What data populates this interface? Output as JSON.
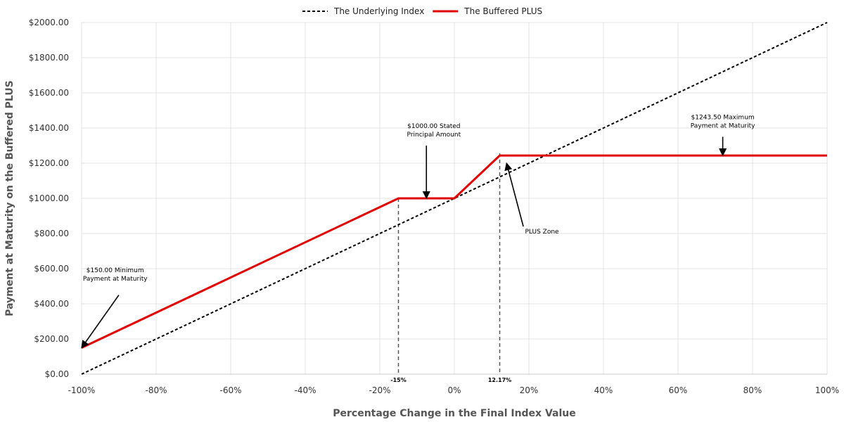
{
  "chart_data": {
    "type": "line",
    "xlabel": "Percentage Change in the Final Index Value",
    "ylabel": "Payment at Maturity on the Buffered PLUS",
    "xlim": [
      -100,
      100
    ],
    "ylim": [
      0,
      2000
    ],
    "x_ticks": [
      -100,
      -80,
      -60,
      -40,
      -20,
      0,
      20,
      40,
      60,
      80,
      100
    ],
    "x_tick_labels": [
      "-100%",
      "-80%",
      "-60%",
      "-40%",
      "-20%",
      "0%",
      "20%",
      "40%",
      "60%",
      "80%",
      "100%"
    ],
    "y_ticks": [
      0,
      200,
      400,
      600,
      800,
      1000,
      1200,
      1400,
      1600,
      1800,
      2000
    ],
    "y_tick_labels": [
      "$0.00",
      "$200.00",
      "$400.00",
      "$600.00",
      "$800.00",
      "$1000.00",
      "$1200.00",
      "$1400.00",
      "$1600.00",
      "$1800.00",
      "$2000.00"
    ],
    "grid": true,
    "legend_position": "top-center",
    "series": [
      {
        "name": "The Underlying Index",
        "style": "dashed",
        "color": "#000000",
        "x": [
          -100,
          100
        ],
        "y": [
          0,
          2000
        ]
      },
      {
        "name": "The Buffered PLUS",
        "style": "solid",
        "color": "#e00000",
        "x": [
          -100,
          -15,
          0,
          12.17,
          100
        ],
        "y": [
          150,
          1000,
          1000,
          1243.5,
          1243.5
        ]
      }
    ],
    "reference_lines": [
      {
        "x": -15,
        "label": "-15%"
      },
      {
        "x": 12.17,
        "label": "12.17%"
      }
    ],
    "annotations": [
      {
        "lines": [
          "$1000.00 Stated",
          "Principal Amount"
        ],
        "text_at": [
          -5.5,
          1400
        ],
        "arrow_from": [
          -7.5,
          1300
        ],
        "arrow_to": [
          -7.5,
          1000
        ]
      },
      {
        "lines": [
          "$1243.50 Maximum",
          "Payment at Maturity"
        ],
        "text_at": [
          72,
          1450
        ],
        "arrow_from": [
          72,
          1350
        ],
        "arrow_to": [
          72,
          1243.5
        ]
      },
      {
        "lines": [
          "PLUS Zone"
        ],
        "text_at": [
          23.5,
          800
        ],
        "arrow_from": [
          18.5,
          840
        ],
        "arrow_to": [
          14,
          1200
        ]
      },
      {
        "lines": [
          "$150.00 Minimum",
          "Payment at Maturity"
        ],
        "text_at": [
          -91,
          580
        ],
        "arrow_from": [
          -90,
          450
        ],
        "arrow_to": [
          -100,
          150
        ]
      }
    ]
  }
}
